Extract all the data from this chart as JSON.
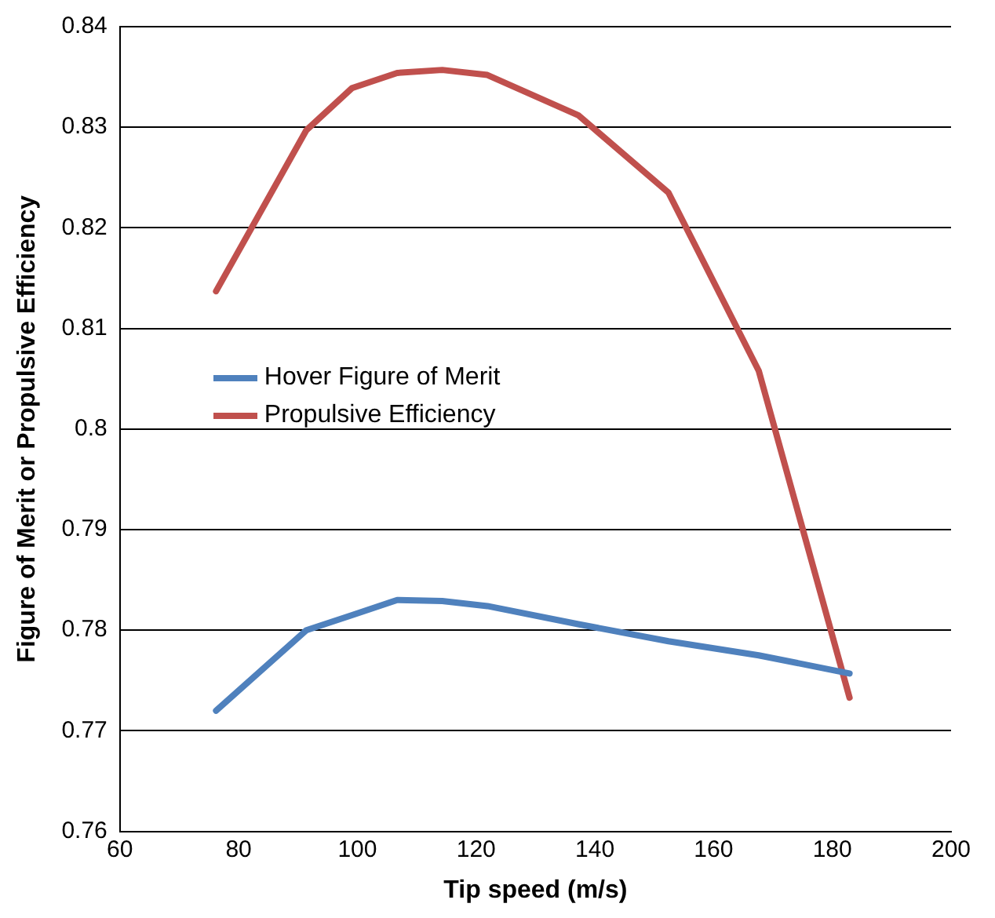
{
  "chart_data": {
    "type": "line",
    "xlabel": "Tip speed (m/s)",
    "ylabel": "Figure of Merit or Propulsive Efficiency",
    "xlim": [
      60,
      200
    ],
    "xticks": [
      60,
      80,
      100,
      120,
      140,
      160,
      180,
      200
    ],
    "ylim": [
      0.76,
      0.84
    ],
    "yticks": [
      0.76,
      0.77,
      0.78,
      0.79,
      0.8,
      0.81,
      0.82,
      0.83,
      0.84
    ],
    "grid": "y",
    "legend": "center left",
    "marker": "none",
    "line_style": "solid",
    "series": [
      {
        "name": "Hover Figure of Merit",
        "color": "#4f81bd",
        "x": [
          76.2,
          91.4,
          99.1,
          106.7,
          114.3,
          121.9,
          137.2,
          152.4,
          167.6,
          182.9
        ],
        "values": [
          0.772,
          0.78,
          0.7815,
          0.783,
          0.7829,
          0.7824,
          0.7806,
          0.7789,
          0.7775,
          0.7757
        ]
      },
      {
        "name": "Propulsive Efficiency",
        "color": "#c0504d",
        "x": [
          76.2,
          91.4,
          99.1,
          106.7,
          114.3,
          121.9,
          137.2,
          152.4,
          167.6,
          182.9
        ],
        "values": [
          0.8137,
          0.8297,
          0.8339,
          0.8354,
          0.8357,
          0.8352,
          0.8312,
          0.8235,
          0.8058,
          0.7733
        ]
      }
    ]
  }
}
